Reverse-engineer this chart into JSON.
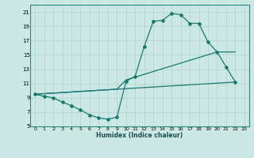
{
  "xlabel": "Humidex (Indice chaleur)",
  "bg_color": "#cce8e5",
  "line_color": "#1a7a6e",
  "grid_color": "#b8d8d5",
  "xlim": [
    -0.5,
    23.5
  ],
  "ylim": [
    5,
    22
  ],
  "yticks": [
    5,
    7,
    9,
    11,
    13,
    15,
    17,
    19,
    21
  ],
  "xticks": [
    0,
    1,
    2,
    3,
    4,
    5,
    6,
    7,
    8,
    9,
    10,
    11,
    12,
    13,
    14,
    15,
    16,
    17,
    18,
    19,
    20,
    21,
    22,
    23
  ],
  "curve_x": [
    0,
    1,
    2,
    3,
    4,
    5,
    6,
    7,
    8,
    9,
    10,
    11,
    12,
    13,
    14,
    15,
    16,
    17,
    18,
    19,
    20,
    21,
    22
  ],
  "curve_y": [
    9.5,
    9.2,
    9.0,
    8.4,
    7.9,
    7.3,
    6.6,
    6.2,
    6.0,
    6.3,
    11.3,
    12.0,
    16.2,
    19.7,
    19.8,
    20.8,
    20.6,
    19.4,
    19.4,
    16.8,
    15.4,
    13.3,
    11.2
  ],
  "line1_x": [
    0,
    9,
    10,
    20,
    22
  ],
  "line1_y": [
    9.5,
    10.2,
    11.5,
    15.4,
    15.4
  ],
  "line2_x": [
    0,
    22
  ],
  "line2_y": [
    9.5,
    11.2
  ],
  "line3_x": [
    0,
    9,
    22
  ],
  "line3_y": [
    9.5,
    10.0,
    11.2
  ]
}
